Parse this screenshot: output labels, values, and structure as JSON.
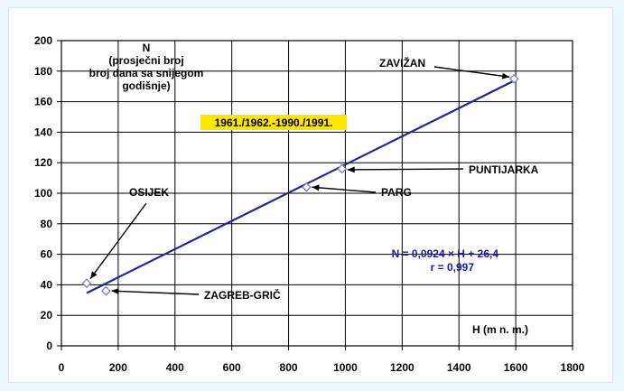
{
  "chart_data": {
    "type": "scatter",
    "title": "",
    "ylabel_lines": [
      "N",
      "(prosječni broj",
      "broj dana sa snijegom",
      "godišnje)"
    ],
    "xlabel": "H (m n. m.)",
    "period_label": "1961./1962.-1990./1991.",
    "xlim": [
      0,
      1800
    ],
    "ylim": [
      0,
      200
    ],
    "x_ticks": [
      "0",
      "200",
      "400",
      "600",
      "800",
      "1000",
      "1200",
      "1400",
      "1600",
      "1800"
    ],
    "y_ticks": [
      "0",
      "20",
      "40",
      "60",
      "80",
      "100",
      "120",
      "140",
      "160",
      "180",
      "200"
    ],
    "grid": true,
    "points": [
      {
        "name": "OSIJEK",
        "x": 89,
        "y": 41
      },
      {
        "name": "ZAGREB-GRIČ",
        "x": 157,
        "y": 36
      },
      {
        "name": "PARG",
        "x": 863,
        "y": 104
      },
      {
        "name": "PUNTIJARKA",
        "x": 988,
        "y": 116
      },
      {
        "name": "ZAVIŽAN",
        "x": 1594,
        "y": 175
      }
    ],
    "fit": {
      "slope": 0.0924,
      "intercept": 26.4,
      "x_range": [
        89,
        1600
      ]
    },
    "equation_lines": [
      "N = 0,0924 × H + 26,4",
      "r = 0,997"
    ],
    "colors": {
      "line": "#1f2a8a",
      "marker": "#7b7bd6",
      "highlight": "#ffe600",
      "equation": "#1a1aa6",
      "background": "#eaf6fa"
    }
  }
}
